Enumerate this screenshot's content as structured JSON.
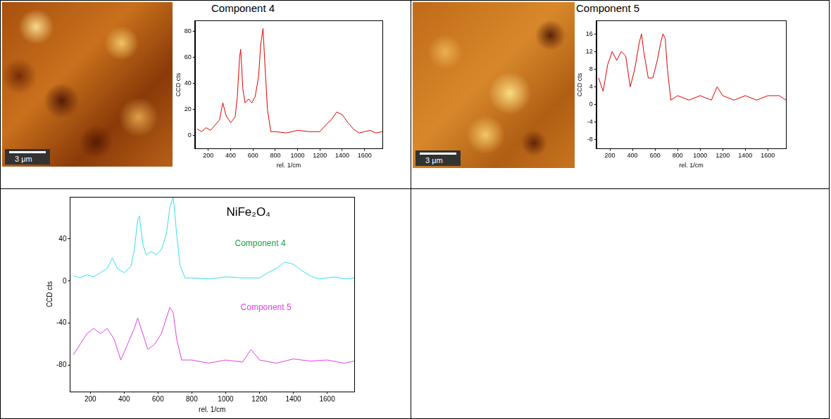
{
  "chart_data": [
    {
      "type": "line",
      "title": "Component 4",
      "x_label": "rel. 1/cm",
      "y_label": "CCD cts",
      "color": "#e00000",
      "grid": false,
      "xlim": [
        80,
        1760
      ],
      "xticks": [
        200,
        400,
        600,
        800,
        1000,
        1200,
        1400,
        1600
      ],
      "ylim": [
        -10,
        88
      ],
      "yticks": [
        0,
        20,
        40,
        60,
        80
      ],
      "x": [
        100,
        140,
        180,
        220,
        260,
        300,
        330,
        360,
        400,
        440,
        460,
        480,
        490,
        510,
        530,
        560,
        590,
        620,
        650,
        670,
        690,
        710,
        730,
        760,
        800,
        900,
        1000,
        1100,
        1200,
        1250,
        1300,
        1350,
        1400,
        1450,
        1500,
        1550,
        1600,
        1650,
        1700,
        1760
      ],
      "values": [
        5,
        3,
        6,
        4,
        8,
        12,
        25,
        15,
        10,
        14,
        30,
        60,
        66,
        35,
        25,
        28,
        25,
        30,
        45,
        70,
        82,
        50,
        20,
        3,
        3,
        2,
        4,
        3,
        3,
        8,
        12,
        18,
        16,
        10,
        5,
        2,
        3,
        4,
        2,
        3
      ]
    },
    {
      "type": "line",
      "title": "Component 5",
      "x_label": "rel. 1/cm",
      "y_label": "CCD cts",
      "color": "#e00000",
      "grid": false,
      "xlim": [
        80,
        1760
      ],
      "xticks": [
        200,
        400,
        600,
        800,
        1000,
        1200,
        1400,
        1600
      ],
      "ylim": [
        -10,
        19
      ],
      "yticks": [
        -8,
        -4,
        0,
        4,
        8,
        12,
        16
      ],
      "x": [
        100,
        140,
        180,
        220,
        260,
        300,
        340,
        380,
        420,
        460,
        480,
        500,
        540,
        580,
        620,
        650,
        670,
        690,
        710,
        740,
        800,
        900,
        1000,
        1100,
        1150,
        1200,
        1300,
        1400,
        1500,
        1600,
        1700,
        1760
      ],
      "values": [
        6,
        3,
        9,
        12,
        10,
        12,
        11,
        4,
        8,
        14,
        16,
        12,
        6,
        6,
        10,
        14,
        16,
        15,
        8,
        1,
        2,
        1,
        2,
        1,
        4,
        2,
        1,
        2,
        1,
        2,
        2,
        1
      ]
    },
    {
      "type": "line",
      "title": "NiFe₂O₄",
      "x_label": "rel. 1/cm",
      "y_label": "CCD cts",
      "grid": false,
      "xlim": [
        80,
        1760
      ],
      "xticks": [
        200,
        400,
        600,
        800,
        1000,
        1200,
        1400,
        1600
      ],
      "ylim": [
        -105,
        80
      ],
      "yticks": [
        -80,
        -40,
        0,
        40
      ],
      "series": [
        {
          "name": "Component 4",
          "color": "#33e0e8",
          "x": [
            100,
            140,
            180,
            220,
            260,
            300,
            330,
            360,
            400,
            440,
            460,
            480,
            490,
            510,
            530,
            560,
            590,
            620,
            650,
            670,
            690,
            710,
            730,
            760,
            800,
            900,
            1000,
            1100,
            1200,
            1250,
            1300,
            1350,
            1400,
            1450,
            1500,
            1550,
            1600,
            1650,
            1700,
            1760
          ],
          "values": [
            5,
            3,
            6,
            4,
            8,
            12,
            22,
            12,
            8,
            14,
            30,
            58,
            62,
            35,
            25,
            28,
            25,
            30,
            45,
            70,
            80,
            45,
            15,
            3,
            3,
            2,
            4,
            3,
            3,
            8,
            12,
            18,
            16,
            10,
            5,
            2,
            3,
            4,
            2,
            3
          ]
        },
        {
          "name": "Component 5",
          "color": "#e040e0",
          "x": [
            100,
            140,
            180,
            220,
            260,
            300,
            340,
            380,
            420,
            460,
            480,
            500,
            540,
            580,
            620,
            650,
            670,
            690,
            710,
            740,
            800,
            900,
            1000,
            1100,
            1150,
            1200,
            1300,
            1400,
            1500,
            1600,
            1700,
            1760
          ],
          "values": [
            -70,
            -60,
            -50,
            -45,
            -50,
            -45,
            -55,
            -75,
            -60,
            -45,
            -35,
            -45,
            -65,
            -60,
            -50,
            -35,
            -25,
            -30,
            -55,
            -75,
            -75,
            -78,
            -75,
            -77,
            -65,
            -75,
            -78,
            -74,
            -76,
            -75,
            -78,
            -76
          ]
        }
      ]
    }
  ],
  "maps": [
    {
      "scale_bar": "3 μm"
    },
    {
      "scale_bar": "3 μm"
    }
  ]
}
